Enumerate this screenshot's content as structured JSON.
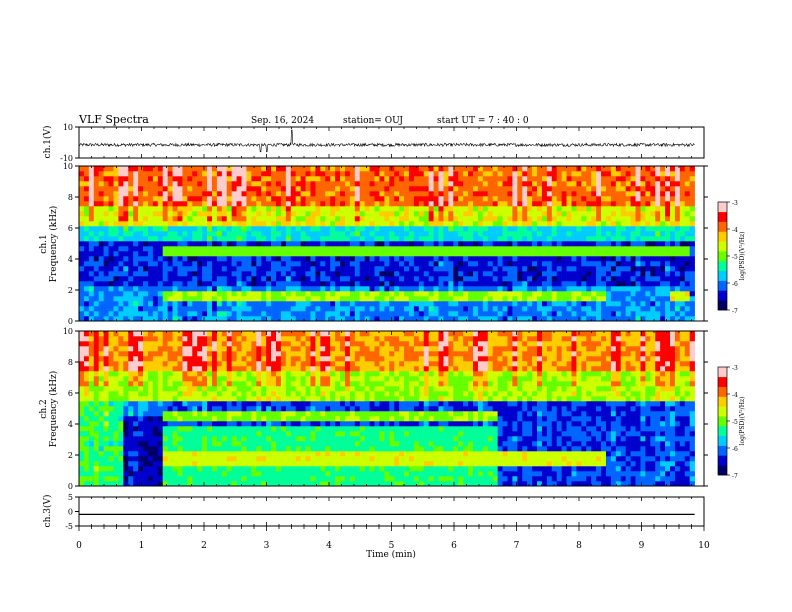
{
  "header": {
    "title": "VLF Spectra",
    "date": "Sep. 16, 2024",
    "station": "station= OUJ",
    "start": "start UT =  7 : 40 : 0"
  },
  "chart_data": [
    {
      "type": "line",
      "name": "ch1-waveform",
      "ylabel": "ch.1(V)",
      "ylim": [
        -10,
        10
      ],
      "ytick_labels": [
        "10",
        "-10"
      ],
      "baseline": -1.5,
      "noise_amplitude": 1.0
    },
    {
      "type": "heatmap",
      "name": "ch1-spectrogram",
      "ylabel_line1": "ch.1",
      "ylabel_line2": "Frequency (kHz)",
      "ylim": [
        0,
        10
      ],
      "ytick_labels": [
        "0",
        "2",
        "4",
        "6",
        "8",
        "10"
      ],
      "colorbar": {
        "label": "log(PSD)(V²/Hz)",
        "range": [
          -7,
          -3
        ],
        "tick_labels": [
          "-3",
          "-4",
          "-5",
          "-6",
          "-7"
        ],
        "colors": [
          "#000066",
          "#0000cc",
          "#0066ff",
          "#00ccff",
          "#00ff99",
          "#66ff00",
          "#ccff00",
          "#ffcc00",
          "#ff6600",
          "#ff0000",
          "#ffcccc"
        ]
      },
      "features": [
        {
          "kind": "band",
          "freq_khz": [
            1.3,
            2.0
          ],
          "time_min": [
            1.35,
            8.4
          ],
          "level": -4.8
        },
        {
          "kind": "line",
          "freq_khz": 4.5,
          "time_min": [
            1.35,
            9.8
          ],
          "level": -5.0
        },
        {
          "kind": "band",
          "freq_khz": [
            1.3,
            1.9
          ],
          "time_min": [
            9.45,
            9.8
          ],
          "level": -4.6
        }
      ]
    },
    {
      "type": "heatmap",
      "name": "ch2-spectrogram",
      "ylabel_line1": "ch.2",
      "ylabel_line2": "Frequency (kHz)",
      "ylim": [
        0,
        10
      ],
      "ytick_labels": [
        "0",
        "2",
        "4",
        "6",
        "8",
        "10"
      ],
      "colorbar": {
        "label": "log(PSD)(V²/Hz)",
        "range": [
          -7,
          -3
        ],
        "tick_labels": [
          "-3",
          "-4",
          "-5",
          "-6",
          "-7"
        ],
        "colors": [
          "#000066",
          "#0000cc",
          "#0066ff",
          "#00ccff",
          "#00ff99",
          "#66ff00",
          "#ccff00",
          "#ffcc00",
          "#ff6600",
          "#ff0000",
          "#ffcccc"
        ]
      },
      "features": [
        {
          "kind": "band",
          "freq_khz": [
            1.3,
            2.1
          ],
          "time_min": [
            1.35,
            8.4
          ],
          "level": -4.6
        },
        {
          "kind": "band",
          "freq_khz": [
            4.2,
            4.7
          ],
          "time_min": [
            1.35,
            6.7
          ],
          "level": -4.9
        },
        {
          "kind": "band",
          "freq_khz": [
            0,
            4.0
          ],
          "time_min": [
            1.35,
            6.7
          ],
          "level": -5.3
        }
      ]
    },
    {
      "type": "line",
      "name": "ch3-waveform",
      "ylabel": "ch.3(V)",
      "ylim": [
        -5,
        5
      ],
      "ytick_labels": [
        "5",
        "0",
        "-5"
      ],
      "baseline": -1.0
    }
  ],
  "x_axis": {
    "label": "Time (min)",
    "xlim": [
      0,
      10
    ],
    "tick_labels": [
      "0",
      "1",
      "2",
      "3",
      "4",
      "5",
      "6",
      "7",
      "8",
      "9",
      "10"
    ],
    "data_end": 9.85
  }
}
